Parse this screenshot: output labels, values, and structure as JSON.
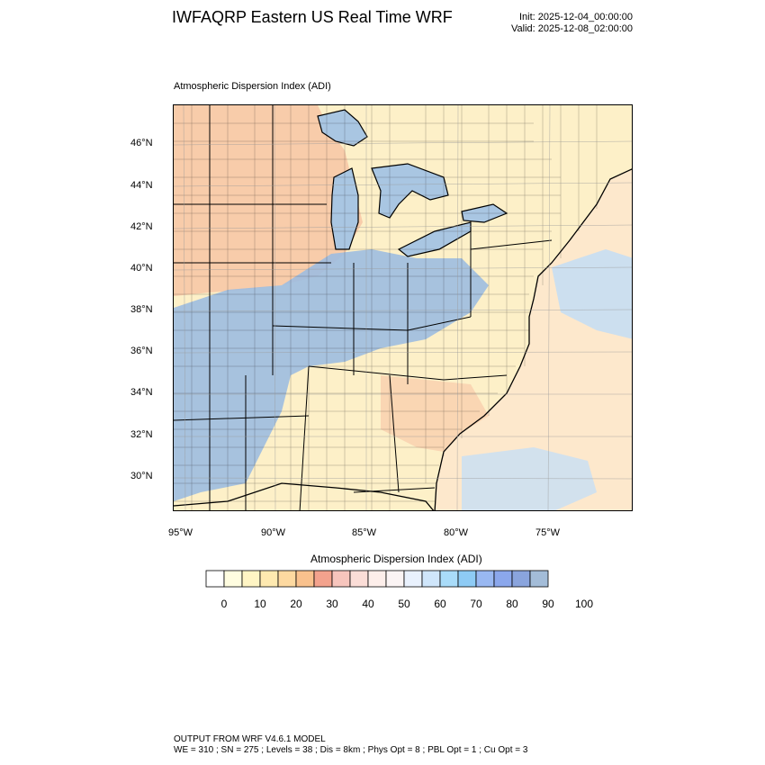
{
  "header": {
    "title": "IWFAQRP Eastern US Real Time WRF",
    "init": "Init: 2025-12-04_00:00:00",
    "valid": "Valid: 2025-12-08_02:00:00"
  },
  "map": {
    "field_title": "Atmospheric Dispersion Index   (ADI)",
    "lat_labels": [
      "46°N",
      "44°N",
      "42°N",
      "40°N",
      "38°N",
      "36°N",
      "34°N",
      "32°N",
      "30°N"
    ],
    "lon_labels": [
      "95°W",
      "90°W",
      "85°W",
      "80°W",
      "75°W"
    ],
    "colors": {
      "land_base": "#fdf0c8",
      "ocean_base": "#fde3c4",
      "lakes": "#a9c6e2",
      "blue_region": "#9cbde0",
      "orange_region": "#f6bfa0",
      "borders": "#000000"
    }
  },
  "labelbar": {
    "title": "Atmospheric Dispersion Index (ADI)",
    "tick_labels": [
      "0",
      "10",
      "20",
      "30",
      "40",
      "50",
      "60",
      "70",
      "80",
      "90",
      "100"
    ],
    "colors": [
      "#ffffff",
      "#fffde0",
      "#fff5c4",
      "#fee9b0",
      "#fdd9a0",
      "#f9c18d",
      "#f3a28d",
      "#f7c5bd",
      "#fbddd7",
      "#fdeeea",
      "#fbf4f4",
      "#e9f1fd",
      "#cfe6fb",
      "#a9dcf9",
      "#8ecbf5",
      "#99b8f2",
      "#8ba7ec",
      "#8aa4dd",
      "#a3bcd8"
    ]
  },
  "footer": {
    "line1": "OUTPUT FROM WRF V4.6.1 MODEL",
    "line2": "WE = 310 ; SN = 275 ; Levels = 38 ; Dis = 8km ; Phys Opt = 8 ; PBL Opt = 1 ; Cu Opt = 3"
  }
}
